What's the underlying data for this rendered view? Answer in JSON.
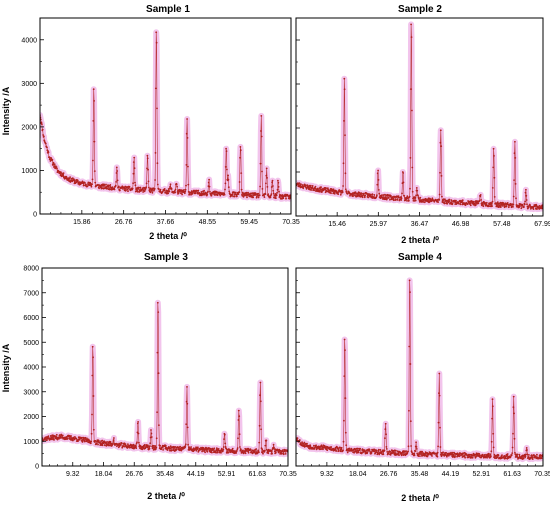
{
  "chart_data": [
    {
      "type": "line",
      "title": "Sample 1",
      "xlabel": "2 theta /⁰",
      "ylabel": "Intensity /A",
      "xlim": [
        5.0,
        70.35
      ],
      "ylim": [
        0,
        4500
      ],
      "xtick_labels": [
        "15.86",
        "26.76",
        "37.66",
        "48.55",
        "59.45",
        "70.35"
      ],
      "ytick_labels": [
        "0",
        "1000",
        "2000",
        "3000",
        "4000"
      ],
      "baseline": [
        [
          5.0,
          2300
        ],
        [
          6.0,
          1750
        ],
        [
          7.5,
          1300
        ],
        [
          9.5,
          1000
        ],
        [
          12.0,
          820
        ],
        [
          15.0,
          720
        ],
        [
          20.0,
          640
        ],
        [
          30.0,
          560
        ],
        [
          40.0,
          510
        ],
        [
          50.0,
          470
        ],
        [
          60.0,
          430
        ],
        [
          70.35,
          390
        ]
      ],
      "peaks": [
        [
          19.0,
          2900
        ],
        [
          25.0,
          1050
        ],
        [
          29.5,
          1300
        ],
        [
          33.0,
          1380
        ],
        [
          35.3,
          4350
        ],
        [
          39.0,
          650
        ],
        [
          40.5,
          700
        ],
        [
          43.3,
          2150
        ],
        [
          49.0,
          800
        ],
        [
          53.5,
          1500
        ],
        [
          54.0,
          880
        ],
        [
          57.2,
          1600
        ],
        [
          62.6,
          2200
        ],
        [
          64.0,
          1000
        ],
        [
          65.5,
          800
        ],
        [
          67.0,
          750
        ]
      ]
    },
    {
      "type": "line",
      "title": "Sample 2",
      "xlabel": "2 theta /⁰",
      "ylabel": "",
      "xlim": [
        5.0,
        70.35
      ],
      "ylim": [
        0,
        4500
      ],
      "xtick_labels": [
        "15.46",
        "25.97",
        "36.47",
        "46.98",
        "57.48",
        "67.99"
      ],
      "ytick_labels": [],
      "baseline": [
        [
          5.0,
          720
        ],
        [
          10.0,
          620
        ],
        [
          20.0,
          500
        ],
        [
          30.0,
          420
        ],
        [
          40.0,
          360
        ],
        [
          50.0,
          300
        ],
        [
          60.0,
          250
        ],
        [
          70.35,
          200
        ]
      ],
      "peaks": [
        [
          17.8,
          3150
        ],
        [
          26.7,
          1050
        ],
        [
          33.3,
          1000
        ],
        [
          35.5,
          4450
        ],
        [
          37.0,
          650
        ],
        [
          43.3,
          2000
        ],
        [
          53.8,
          480
        ],
        [
          57.3,
          1550
        ],
        [
          62.9,
          1680
        ],
        [
          65.8,
          550
        ]
      ]
    },
    {
      "type": "line",
      "title": "Sample 3",
      "xlabel": "2 theta /⁰",
      "ylabel": "Intensity /A",
      "xlim": [
        5.0,
        70.35
      ],
      "ylim": [
        0,
        8000
      ],
      "xtick_labels": [
        "9.32",
        "18.04",
        "26.76",
        "35.48",
        "44.19",
        "52.91",
        "61.63",
        "70.35"
      ],
      "ytick_labels": [
        "0",
        "1000",
        "2000",
        "3000",
        "4000",
        "5000",
        "6000",
        "7000",
        "8000"
      ],
      "baseline": [
        [
          5.0,
          1100
        ],
        [
          10.0,
          1180
        ],
        [
          15.0,
          1080
        ],
        [
          20.0,
          950
        ],
        [
          25.0,
          850
        ],
        [
          30.0,
          780
        ],
        [
          40.0,
          700
        ],
        [
          50.0,
          640
        ],
        [
          60.0,
          600
        ],
        [
          70.35,
          560
        ]
      ],
      "peaks": [
        [
          18.5,
          4900
        ],
        [
          24.0,
          1100
        ],
        [
          30.5,
          1800
        ],
        [
          34.0,
          1400
        ],
        [
          35.8,
          6750
        ],
        [
          37.5,
          900
        ],
        [
          43.5,
          3150
        ],
        [
          53.5,
          1250
        ],
        [
          57.3,
          2350
        ],
        [
          63.0,
          3300
        ],
        [
          64.5,
          1100
        ],
        [
          66.5,
          800
        ]
      ]
    },
    {
      "type": "line",
      "title": "Sample 4",
      "xlabel": "2 theta /⁰",
      "ylabel": "",
      "xlim": [
        5.0,
        70.35
      ],
      "ylim": [
        0,
        8000
      ],
      "xtick_labels": [
        "9.32",
        "18.04",
        "26.76",
        "35.48",
        "44.19",
        "52.91",
        "61.63",
        "70.35"
      ],
      "ytick_labels": [],
      "baseline": [
        [
          5.0,
          1150
        ],
        [
          6.5,
          900
        ],
        [
          9.0,
          780
        ],
        [
          15.0,
          700
        ],
        [
          20.0,
          620
        ],
        [
          30.0,
          540
        ],
        [
          40.0,
          480
        ],
        [
          50.0,
          430
        ],
        [
          60.0,
          390
        ],
        [
          70.35,
          360
        ]
      ],
      "peaks": [
        [
          17.9,
          5150
        ],
        [
          28.7,
          1650
        ],
        [
          35.1,
          7750
        ],
        [
          36.8,
          900
        ],
        [
          42.9,
          3700
        ],
        [
          57.0,
          2650
        ],
        [
          62.6,
          2800
        ],
        [
          66.0,
          700
        ]
      ]
    }
  ],
  "colors": {
    "observed": "#b32222",
    "fit_band": "#f2c4ec",
    "frame": "#000000"
  }
}
